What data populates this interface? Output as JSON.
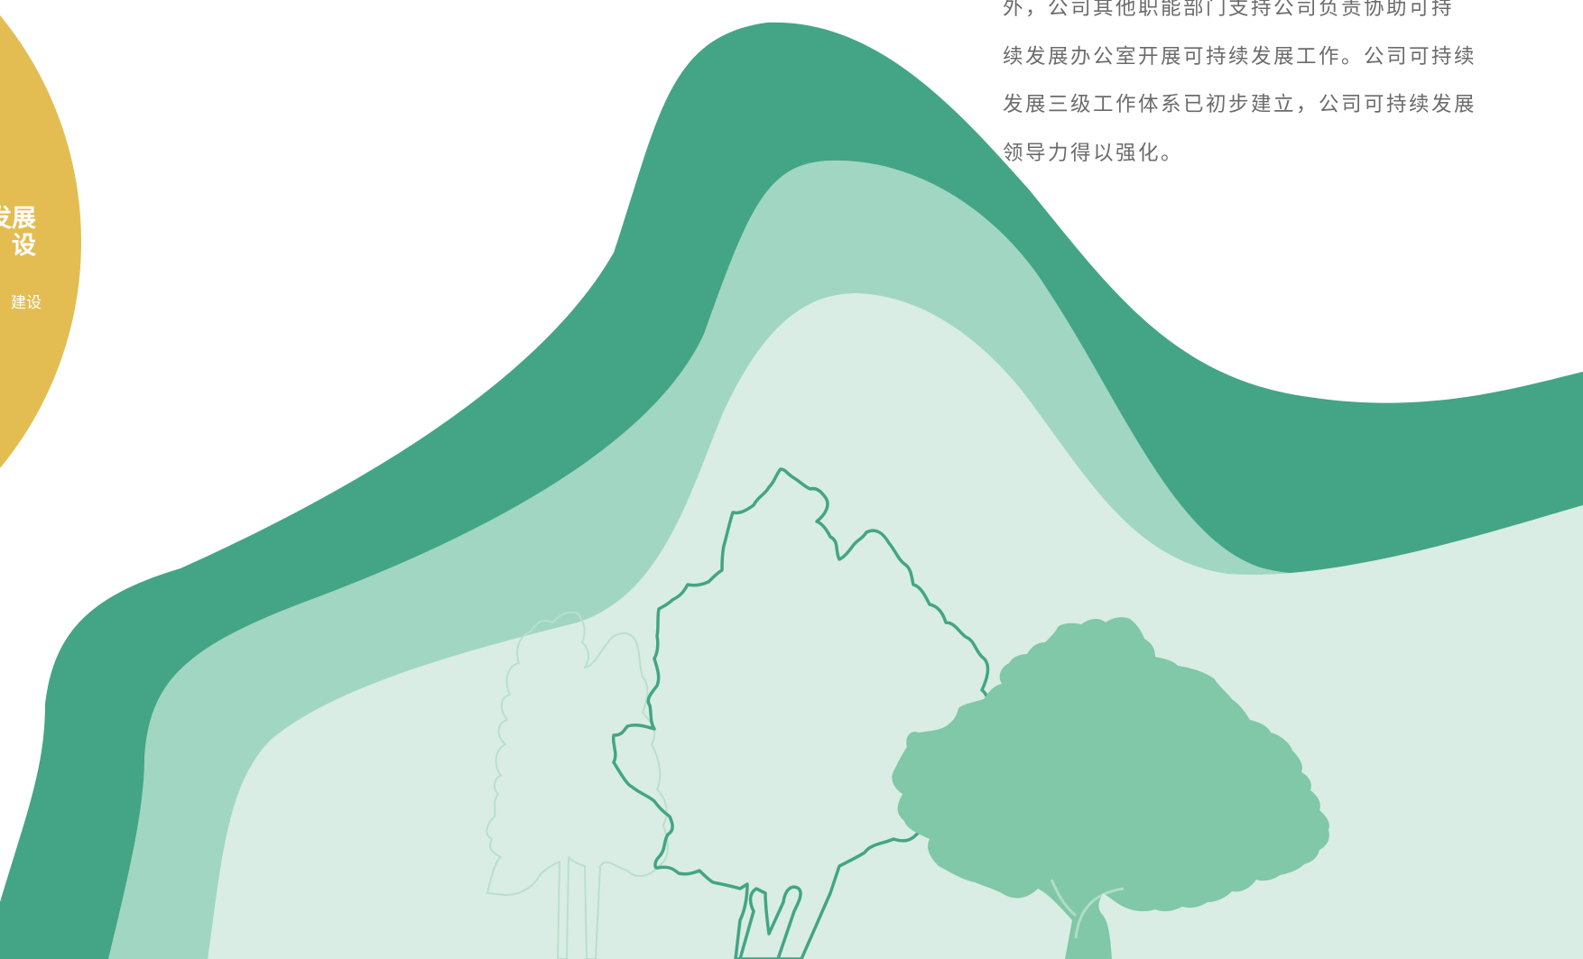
{
  "colors": {
    "yellow": "#e3bd52",
    "dark_green": "#43a585",
    "mid_green": "#a1d6c3",
    "light_green": "#d9ede4",
    "tree_fill": "#80c8a7",
    "tree_outline": "#43a585",
    "tree_outline_faint": "#b8e0cd",
    "text_gray": "#6b6b6b"
  },
  "circle": {
    "title": "发展\n设",
    "subtitle": "建设"
  },
  "paragraph": {
    "lines": [
      "外，公司其他职能部门支持公司负责协助可持",
      "续发展办公室开展可持续发展工作。公司可持续",
      "发展三级工作体系已初步建立，公司可持续发展",
      "领导力得以强化。"
    ]
  },
  "illustration": {
    "icons": [
      "wave-band-icon",
      "tree-outline-icon",
      "tree-silhouette-icon"
    ]
  }
}
